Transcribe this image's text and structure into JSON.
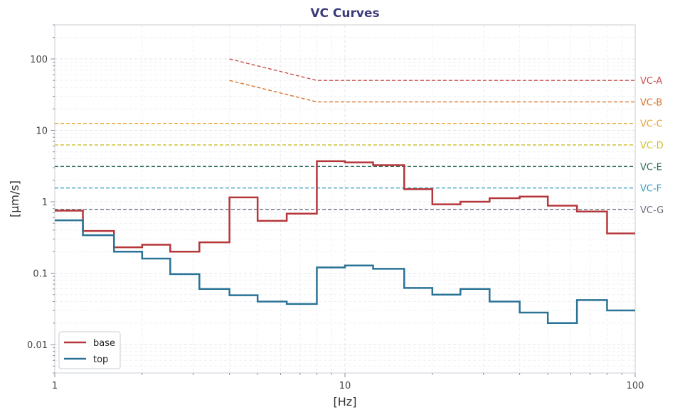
{
  "chart_data": {
    "type": "line",
    "title": "VC Curves",
    "xlabel": "[Hz]",
    "ylabel": "[μm/s]",
    "x_scale": "log",
    "y_scale": "log",
    "xlim": [
      1,
      100
    ],
    "ylim": [
      0.004,
      300
    ],
    "grid": true,
    "legend_position": "lower-left",
    "x_ticks": [
      {
        "value": 1,
        "label": "1"
      },
      {
        "value": 10,
        "label": "10"
      },
      {
        "value": 100,
        "label": "100"
      }
    ],
    "y_ticks": [
      {
        "value": 0.01,
        "label": "0.01"
      },
      {
        "value": 0.1,
        "label": "0.1"
      },
      {
        "value": 1,
        "label": "1"
      },
      {
        "value": 10,
        "label": "10"
      },
      {
        "value": 100,
        "label": "100"
      }
    ],
    "title_color": "#3b3b7a",
    "series": [
      {
        "name": "base",
        "color": "#b5373a",
        "step": "post",
        "x": [
          1,
          1.25,
          1.6,
          2,
          2.5,
          3.15,
          4,
          5,
          6.3,
          8,
          10,
          12.5,
          16,
          20,
          25,
          31.5,
          40,
          50,
          63,
          80,
          100
        ],
        "y": [
          0.75,
          0.39,
          0.23,
          0.25,
          0.2,
          0.27,
          1.15,
          0.54,
          0.68,
          3.7,
          3.55,
          3.25,
          1.5,
          0.92,
          1.0,
          1.12,
          1.18,
          0.88,
          0.73,
          0.36,
          0.36
        ]
      },
      {
        "name": "top",
        "color": "#2a7396",
        "step": "post",
        "x": [
          1,
          1.25,
          1.6,
          2,
          2.5,
          3.15,
          4,
          5,
          6.3,
          8,
          10,
          12.5,
          16,
          20,
          25,
          31.5,
          40,
          50,
          63,
          80,
          100
        ],
        "y": [
          0.55,
          0.34,
          0.2,
          0.16,
          0.097,
          0.06,
          0.049,
          0.04,
          0.037,
          0.12,
          0.128,
          0.115,
          0.062,
          0.05,
          0.06,
          0.04,
          0.028,
          0.02,
          0.042,
          0.03,
          0.03
        ]
      }
    ],
    "reference_lines": [
      {
        "label": "VC-A",
        "color": "#c9524e",
        "x": [
          4,
          8,
          100
        ],
        "y": [
          100,
          50,
          50
        ]
      },
      {
        "label": "VC-B",
        "color": "#d9722a",
        "x": [
          4,
          8,
          100
        ],
        "y": [
          50,
          25,
          25
        ]
      },
      {
        "label": "VC-C",
        "color": "#e6a532",
        "x": [
          1,
          100
        ],
        "y": [
          12.5,
          12.5
        ]
      },
      {
        "label": "VC-D",
        "color": "#d1c22e",
        "x": [
          1,
          100
        ],
        "y": [
          6.25,
          6.25
        ]
      },
      {
        "label": "VC-E",
        "color": "#2f6b5e",
        "x": [
          1,
          100
        ],
        "y": [
          3.12,
          3.12
        ]
      },
      {
        "label": "VC-F",
        "color": "#3a9dbd",
        "x": [
          1,
          100
        ],
        "y": [
          1.56,
          1.56
        ]
      },
      {
        "label": "VC-G",
        "color": "#6e6e82",
        "x": [
          1,
          100
        ],
        "y": [
          0.78,
          0.78
        ]
      }
    ]
  }
}
